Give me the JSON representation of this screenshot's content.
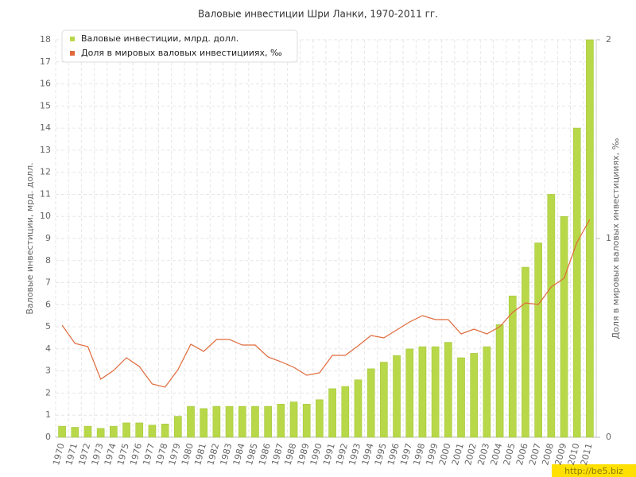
{
  "chart_data": {
    "type": "bar",
    "title": "Валовые инвестиции Шри Ланки, 1970-2011 гг.",
    "y_label": "Валовые инвестиции, мрд. долл.",
    "y2_label": "Доля в мировых валовых инвестицииях, ‰",
    "watermark": "http://be5.biz",
    "categories": [
      "1970",
      "1971",
      "1972",
      "1973",
      "1974",
      "1975",
      "1976",
      "1977",
      "1978",
      "1979",
      "1980",
      "1981",
      "1982",
      "1983",
      "1984",
      "1985",
      "1986",
      "1987",
      "1988",
      "1989",
      "1990",
      "1991",
      "1992",
      "1993",
      "1994",
      "1995",
      "1996",
      "1997",
      "1998",
      "1999",
      "2000",
      "2001",
      "2002",
      "2003",
      "2004",
      "2005",
      "2006",
      "2007",
      "2008",
      "2009",
      "2010",
      "2011"
    ],
    "series": [
      {
        "name": "Валовые инвестиции, млрд. долл.",
        "type": "bar",
        "color": "#b8d84a",
        "values": [
          0.5,
          0.45,
          0.5,
          0.4,
          0.5,
          0.65,
          0.65,
          0.55,
          0.6,
          0.95,
          1.4,
          1.3,
          1.4,
          1.4,
          1.4,
          1.4,
          1.4,
          1.5,
          1.6,
          1.5,
          1.7,
          2.2,
          2.3,
          2.6,
          3.1,
          3.4,
          3.7,
          4.0,
          4.1,
          4.1,
          4.3,
          3.6,
          3.8,
          4.1,
          5.1,
          6.4,
          7.7,
          8.8,
          11.0,
          10.0,
          14.0,
          18.0
        ]
      },
      {
        "name": "Доля в мировых валовых инвестицииях, ‰",
        "type": "line",
        "axis": "y2",
        "color": "#e06a3b",
        "values": [
          0.564,
          0.472,
          0.456,
          0.292,
          0.336,
          0.4,
          0.356,
          0.268,
          0.252,
          0.34,
          0.468,
          0.432,
          0.492,
          0.492,
          0.464,
          0.464,
          0.404,
          0.38,
          0.352,
          0.312,
          0.324,
          0.412,
          0.412,
          0.46,
          0.512,
          0.5,
          0.54,
          0.58,
          0.612,
          0.592,
          0.592,
          0.52,
          0.544,
          0.52,
          0.556,
          0.628,
          0.676,
          0.668,
          0.756,
          0.8,
          0.98,
          1.096
        ]
      }
    ],
    "ylim": [
      0,
      18
    ],
    "yticks": [
      0,
      1,
      2,
      3,
      4,
      5,
      6,
      7,
      8,
      9,
      10,
      11,
      12,
      13,
      14,
      15,
      16,
      17,
      18
    ],
    "y2lim": [
      0,
      2
    ],
    "y2ticks": [
      0,
      1,
      2
    ],
    "grid": true,
    "legend": "top-left"
  }
}
